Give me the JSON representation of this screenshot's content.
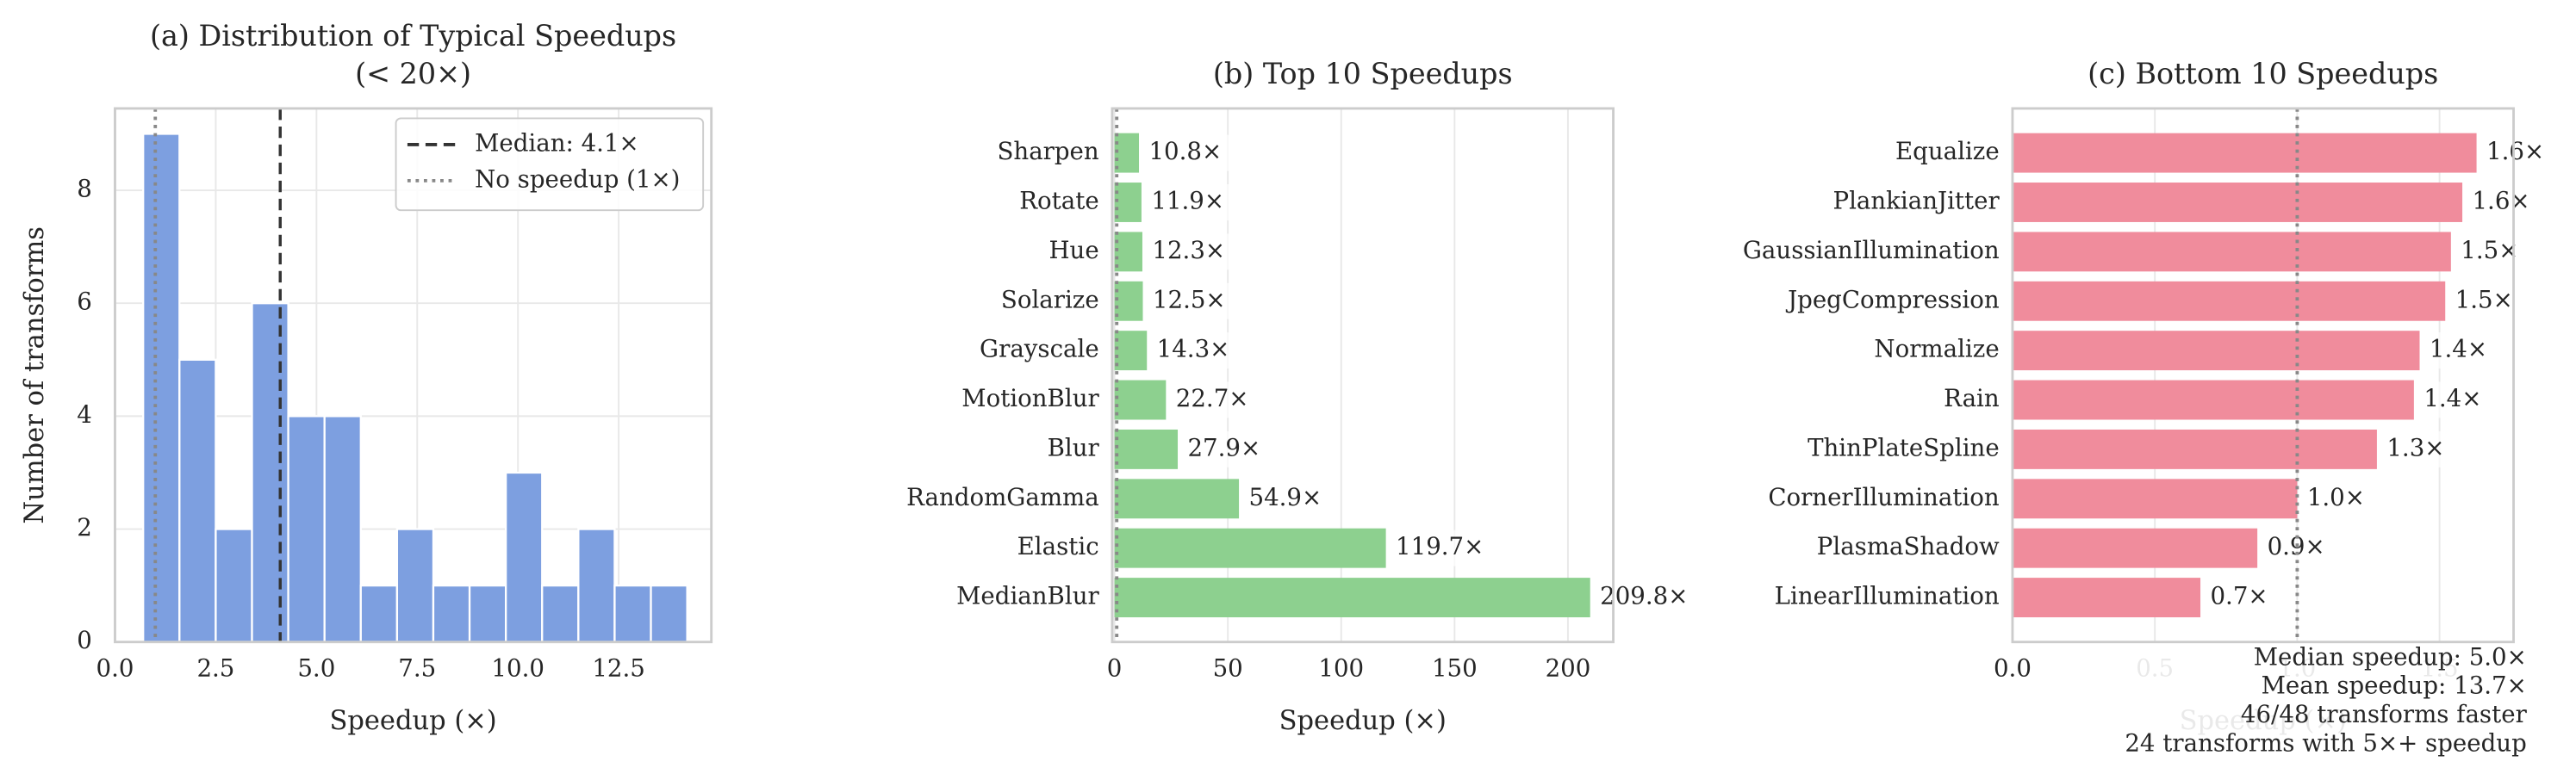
{
  "chart_data": [
    {
      "type": "histogram",
      "title": [
        "(a) Distribution of Typical Speedups",
        "(< 20×)"
      ],
      "x_label": "Speedup (×)",
      "y_label": "Number of transforms",
      "bins": [
        0.7,
        1.6,
        2.5,
        3.4,
        4.3,
        5.2,
        6.1,
        7.0,
        7.9,
        8.8,
        9.7,
        10.6,
        11.5,
        12.4,
        13.3,
        14.2
      ],
      "values": [
        9,
        5,
        2,
        6,
        4,
        4,
        1,
        2,
        1,
        1,
        3,
        1,
        2,
        1,
        1
      ],
      "color": "#7d9fe0",
      "xlim": [
        0,
        14.8
      ],
      "ylim": [
        0,
        9.45
      ],
      "xticks": [
        {
          "value": 0,
          "label": "0.0"
        },
        {
          "value": 2.5,
          "label": "2.5"
        },
        {
          "value": 5,
          "label": "5.0"
        },
        {
          "value": 7.5,
          "label": "7.5"
        },
        {
          "value": 10,
          "label": "10.0"
        },
        {
          "value": 12.5,
          "label": "12.5"
        }
      ],
      "yticks": [
        0,
        2,
        4,
        6,
        8
      ],
      "grid": true,
      "reference_lines": [
        {
          "name": "Median: 4.1×",
          "value": 4.1,
          "color": "#333333",
          "style": "dashed"
        },
        {
          "name": "No speedup (1×)",
          "value": 1,
          "color": "#888888",
          "style": "dotted"
        }
      ],
      "legend": "upper right"
    },
    {
      "type": "barh",
      "title": [
        "(b) Top 10 Speedups"
      ],
      "x_label": "Speedup (×)",
      "categories": [
        "Sharpen",
        "Rotate",
        "Hue",
        "Solarize",
        "Grayscale",
        "MotionBlur",
        "Blur",
        "RandomGamma",
        "Elastic",
        "MedianBlur"
      ],
      "values": [
        10.8,
        11.9,
        12.3,
        12.5,
        14.3,
        22.7,
        27.9,
        54.9,
        119.7,
        209.8
      ],
      "value_labels": [
        "10.8×",
        "11.9×",
        "12.3×",
        "12.5×",
        "14.3×",
        "22.7×",
        "27.9×",
        "54.9×",
        "119.7×",
        "209.8×"
      ],
      "color": "#8dd08f",
      "xlim": [
        -1,
        220
      ],
      "xticks": [
        0,
        50,
        100,
        150,
        200
      ],
      "grid": true,
      "reference_lines": [
        {
          "value": 1,
          "color": "#888888",
          "style": "dotted"
        }
      ]
    },
    {
      "type": "barh",
      "title": [
        "(c) Bottom 10 Speedups"
      ],
      "x_label": "Speedup (×)",
      "categories": [
        "Equalize",
        "PlankianJitter",
        "GaussianIllumination",
        "JpegCompression",
        "Normalize",
        "Rain",
        "ThinPlateSpline",
        "CornerIllumination",
        "PlasmaShadow",
        "LinearIllumination"
      ],
      "values": [
        1.63,
        1.58,
        1.54,
        1.52,
        1.43,
        1.41,
        1.28,
        1.0,
        0.86,
        0.66
      ],
      "value_labels": [
        "1.6×",
        "1.6×",
        "1.5×",
        "1.5×",
        "1.4×",
        "1.4×",
        "1.3×",
        "1.0×",
        "0.9×",
        "0.7×"
      ],
      "color": "#f08c9c",
      "xlim": [
        0,
        1.76
      ],
      "xticks": [
        {
          "value": 0,
          "label": "0.0"
        },
        {
          "value": 0.5,
          "label": "0.5"
        },
        {
          "value": 1,
          "label": "1.0"
        },
        {
          "value": 1.5,
          "label": "1.5"
        }
      ],
      "grid": true,
      "reference_lines": [
        {
          "value": 1,
          "color": "#888888",
          "style": "dotted"
        }
      ],
      "annotations": [
        "Median speedup: 5.0×",
        "Mean speedup: 13.7×",
        "46/48 transforms faster",
        "24 transforms with 5×+ speedup"
      ]
    }
  ]
}
